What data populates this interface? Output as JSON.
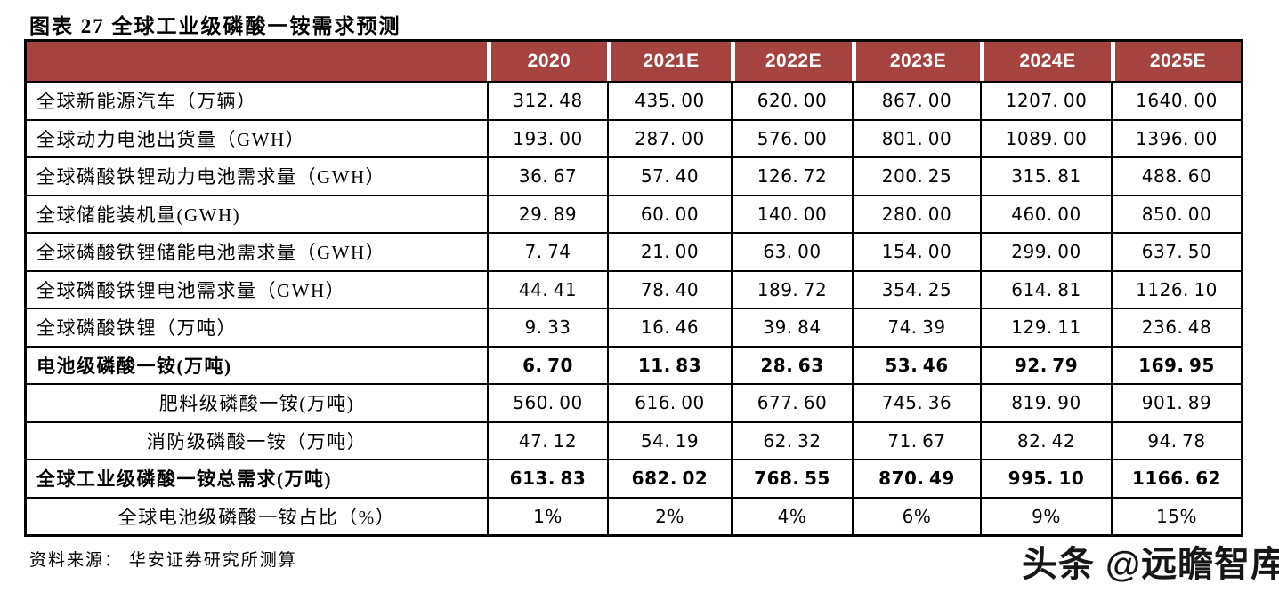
{
  "page": {
    "title": "图表 27 全球工业级磷酸一铵需求预测",
    "source": "资料来源： 华安证券研究所测算",
    "watermark": "头条 @远瞻智库"
  },
  "colors": {
    "header_bg": "#A5443E",
    "header_text": "#FFFFFF",
    "grid_line": "#000000",
    "body_bg": "#FFFFFF"
  },
  "table": {
    "corner_label": "",
    "columns": [
      "2020",
      "2021E",
      "2022E",
      "2023E",
      "2024E",
      "2025E"
    ],
    "rows": [
      {
        "label": "全球新能源汽车（万辆）",
        "align": "left",
        "bold": false,
        "values": [
          "312.48",
          "435.00",
          "620.00",
          "867.00",
          "1207.00",
          "1640.00"
        ]
      },
      {
        "label": "全球动力电池出货量（GWH）",
        "align": "left",
        "bold": false,
        "values": [
          "193.00",
          "287.00",
          "576.00",
          "801.00",
          "1089.00",
          "1396.00"
        ]
      },
      {
        "label": "全球磷酸铁锂动力电池需求量（GWH）",
        "align": "left",
        "bold": false,
        "values": [
          "36.67",
          "57.40",
          "126.72",
          "200.25",
          "315.81",
          "488.60"
        ]
      },
      {
        "label": "全球储能装机量(GWH)",
        "align": "left",
        "bold": false,
        "values": [
          "29.89",
          "60.00",
          "140.00",
          "280.00",
          "460.00",
          "850.00"
        ]
      },
      {
        "label": "全球磷酸铁锂储能电池需求量（GWH）",
        "align": "left",
        "bold": false,
        "values": [
          "7.74",
          "21.00",
          "63.00",
          "154.00",
          "299.00",
          "637.50"
        ]
      },
      {
        "label": "全球磷酸铁锂电池需求量（GWH）",
        "align": "left",
        "bold": false,
        "values": [
          "44.41",
          "78.40",
          "189.72",
          "354.25",
          "614.81",
          "1126.10"
        ]
      },
      {
        "label": "全球磷酸铁锂（万吨）",
        "align": "left",
        "bold": false,
        "values": [
          "9.33",
          "16.46",
          "39.84",
          "74.39",
          "129.11",
          "236.48"
        ]
      },
      {
        "label": "电池级磷酸一铵(万吨)",
        "align": "left",
        "bold": true,
        "values": [
          "6.70",
          "11.83",
          "28.63",
          "53.46",
          "92.79",
          "169.95"
        ]
      },
      {
        "label": "肥料级磷酸一铵(万吨)",
        "align": "center",
        "bold": false,
        "values": [
          "560.00",
          "616.00",
          "677.60",
          "745.36",
          "819.90",
          "901.89"
        ]
      },
      {
        "label": "消防级磷酸一铵（万吨）",
        "align": "center",
        "bold": false,
        "values": [
          "47.12",
          "54.19",
          "62.32",
          "71.67",
          "82.42",
          "94.78"
        ]
      },
      {
        "label": "全球工业级磷酸一铵总需求(万吨)",
        "align": "left",
        "bold": true,
        "values": [
          "613.83",
          "682.02",
          "768.55",
          "870.49",
          "995.10",
          "1166.62"
        ]
      },
      {
        "label": "全球电池级磷酸一铵占比（%）",
        "align": "center",
        "bold": false,
        "values": [
          "1%",
          "2%",
          "4%",
          "6%",
          "9%",
          "15%"
        ]
      }
    ]
  }
}
